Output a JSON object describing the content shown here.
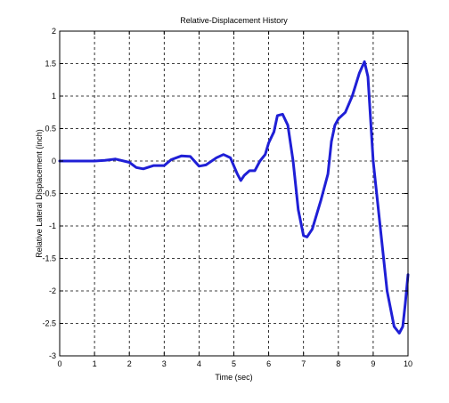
{
  "chart_data": {
    "type": "line",
    "title": "Relative-Displacement History",
    "xlabel": "Time (sec)",
    "ylabel": "Relative Lateral Displacement (inch)",
    "xlim": [
      0,
      10
    ],
    "ylim": [
      -3,
      2
    ],
    "xticks": [
      "0",
      "1",
      "2",
      "3",
      "4",
      "5",
      "6",
      "7",
      "8",
      "9",
      "10"
    ],
    "yticks": [
      "2",
      "1.5",
      "1",
      "0.5",
      "0",
      "-0.5",
      "-1",
      "-1.5",
      "-2",
      "-2.5",
      "-3"
    ],
    "grid": true,
    "grid_style": "dashed",
    "line_color": "#1f1fd6",
    "series": [
      {
        "x": [
          0,
          0.5,
          1.0,
          1.3,
          1.6,
          2.0,
          2.2,
          2.4,
          2.7,
          3.0,
          3.2,
          3.5,
          3.75,
          4.0,
          4.2,
          4.5,
          4.7,
          4.9,
          5.1,
          5.2,
          5.3,
          5.45,
          5.6,
          5.75,
          5.9,
          6.0,
          6.15,
          6.25,
          6.4,
          6.55,
          6.7,
          6.85,
          7.0,
          7.1,
          7.25,
          7.5,
          7.7,
          7.8,
          7.9,
          8.0,
          8.2,
          8.4,
          8.6,
          8.75,
          8.85,
          9.0,
          9.2,
          9.4,
          9.6,
          9.75,
          9.85,
          9.92,
          10.0
        ],
        "y": [
          0,
          0,
          0,
          0.01,
          0.03,
          -0.02,
          -0.1,
          -0.12,
          -0.07,
          -0.07,
          0.02,
          0.08,
          0.07,
          -0.08,
          -0.06,
          0.05,
          0.1,
          0.05,
          -0.2,
          -0.3,
          -0.22,
          -0.15,
          -0.15,
          0.0,
          0.1,
          0.28,
          0.45,
          0.7,
          0.72,
          0.55,
          0.0,
          -0.75,
          -1.15,
          -1.17,
          -1.05,
          -0.6,
          -0.2,
          0.3,
          0.55,
          0.65,
          0.75,
          1.0,
          1.35,
          1.53,
          1.3,
          0.0,
          -1.0,
          -2.0,
          -2.55,
          -2.65,
          -2.55,
          -2.2,
          -1.75
        ]
      }
    ]
  }
}
